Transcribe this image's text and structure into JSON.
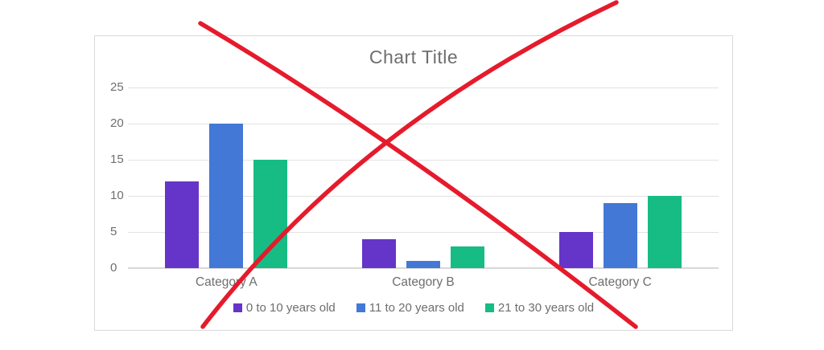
{
  "chart_data": {
    "type": "bar",
    "title": "Chart Title",
    "categories": [
      "Category A",
      "Category B",
      "Category C"
    ],
    "series": [
      {
        "name": "0 to 10 years old",
        "color": "#6535c9",
        "values": [
          12,
          4,
          5
        ]
      },
      {
        "name": "11 to 20 years old",
        "color": "#4478d6",
        "values": [
          20,
          1,
          9
        ]
      },
      {
        "name": "21 to 30 years old",
        "color": "#16bc84",
        "values": [
          15,
          3,
          10
        ]
      }
    ],
    "xlabel": "",
    "ylabel": "",
    "ylim": [
      0,
      25
    ],
    "yticks": [
      0,
      5,
      10,
      15,
      20,
      25
    ],
    "grid": true,
    "legend_position": "bottom"
  },
  "annotation": {
    "type": "red-cross-out",
    "color": "#e51b2c"
  },
  "styles": {
    "panel_border": "#d9d9d9",
    "grid_color": "#e2e2e2",
    "baseline_color": "#d8d8d8",
    "text_color": "#6e6e6e",
    "background": "#ffffff"
  }
}
